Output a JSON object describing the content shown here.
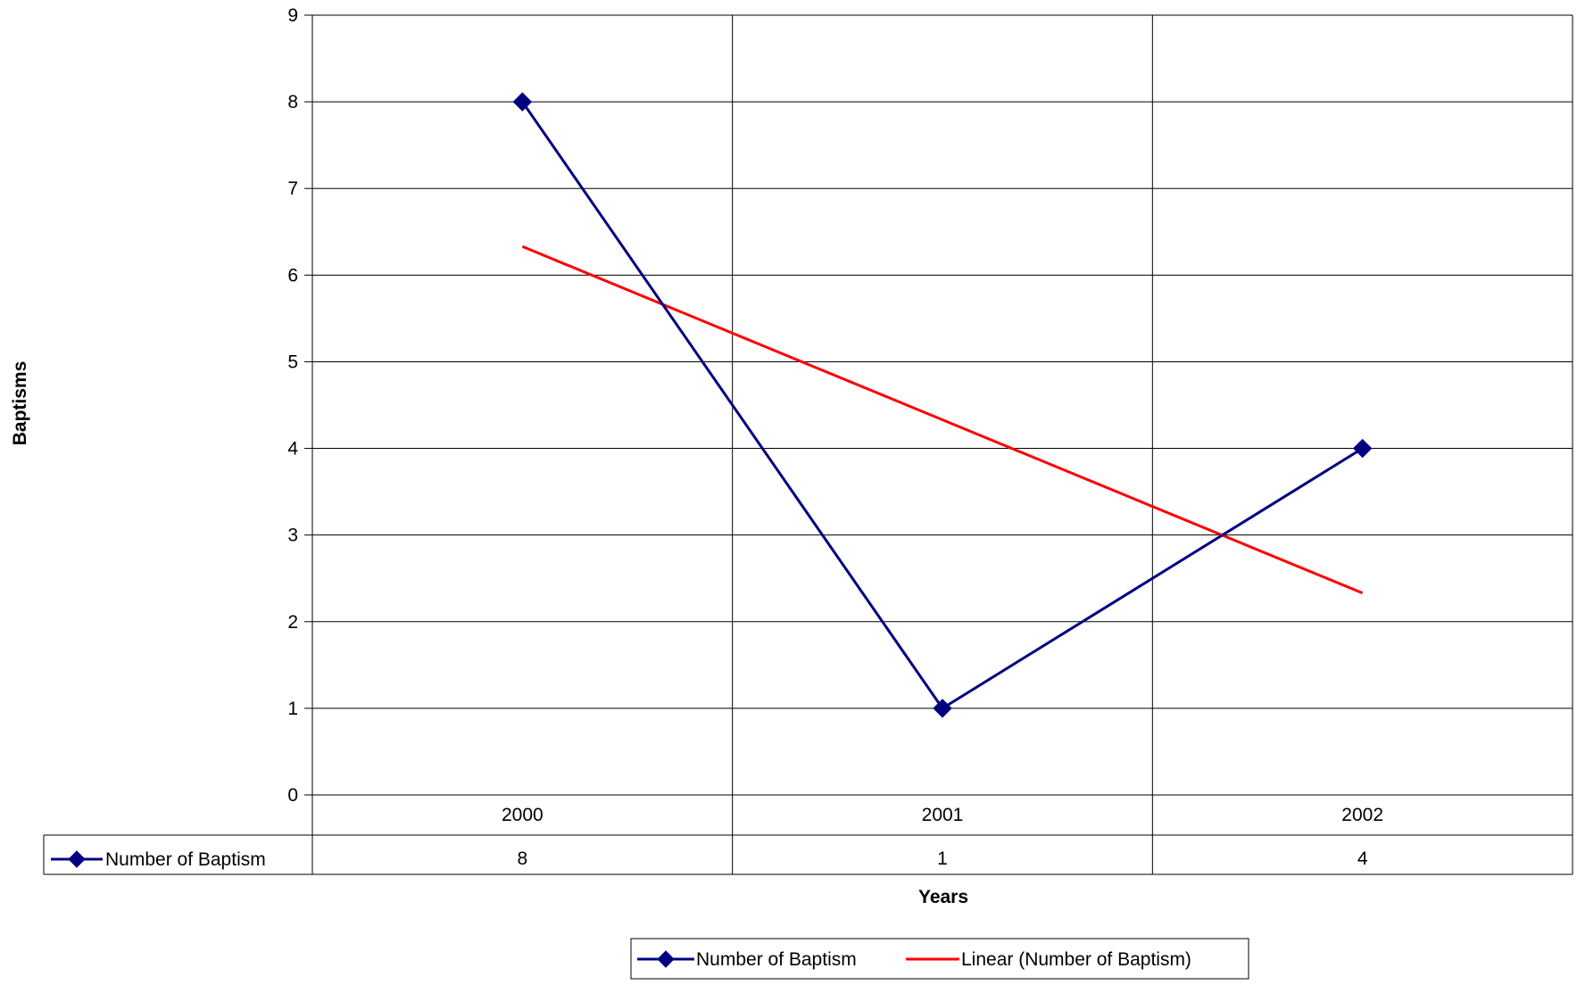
{
  "chart_data": {
    "type": "line",
    "title": "",
    "xlabel": "Years",
    "ylabel": "Baptisms",
    "categories": [
      "2000",
      "2001",
      "2002"
    ],
    "yticks": [
      "0",
      "1",
      "2",
      "3",
      "4",
      "5",
      "6",
      "7",
      "8",
      "9"
    ],
    "ylim": [
      0,
      9
    ],
    "grid": true,
    "legend_position": "bottom",
    "data_table": true,
    "series": [
      {
        "name": "Number of Baptism",
        "values": [
          8,
          1,
          4
        ],
        "color": "#000080",
        "marker": "diamond"
      }
    ],
    "trendline": {
      "name": "Linear (Number of Baptism)",
      "type": "linear",
      "values": [
        6.33,
        4.33,
        2.33
      ],
      "color": "#ff0000"
    },
    "data_table_values": [
      "8",
      "1",
      "4"
    ]
  }
}
